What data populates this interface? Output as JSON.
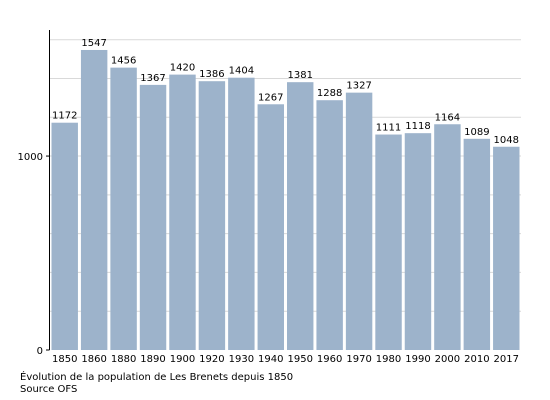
{
  "chart_data": {
    "type": "bar",
    "categories": [
      "1850",
      "1860",
      "1880",
      "1890",
      "1900",
      "1920",
      "1930",
      "1940",
      "1950",
      "1960",
      "1970",
      "1980",
      "1990",
      "2000",
      "2010",
      "2017"
    ],
    "values": [
      1172,
      1547,
      1456,
      1367,
      1420,
      1386,
      1404,
      1267,
      1381,
      1288,
      1327,
      1111,
      1118,
      1164,
      1089,
      1048
    ],
    "ylim": [
      0,
      1650
    ],
    "yticks": [
      0,
      1000
    ],
    "grid": true,
    "bar_color": "#9db3cb",
    "grid_color": "#d9d9d9"
  },
  "caption": {
    "line1": "Évolution de la population de Les Brenets depuis 1850",
    "line2": "Source OFS"
  }
}
